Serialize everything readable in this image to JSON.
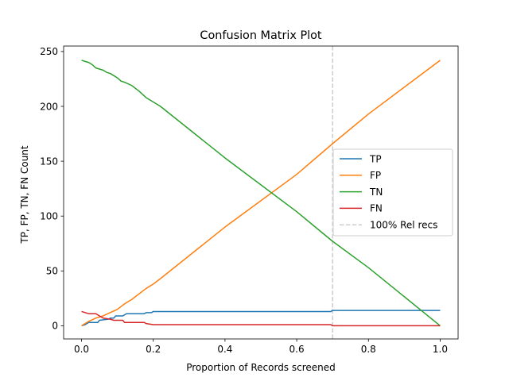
{
  "chart_data": {
    "type": "line",
    "title": "Confusion Matrix Plot",
    "xlabel": "Proportion of Records screened",
    "ylabel": "TP, FP, TN, FN Count",
    "xlim": [
      -0.05,
      1.05
    ],
    "ylim": [
      -12,
      255
    ],
    "xticks": [
      0.0,
      0.2,
      0.4,
      0.6,
      0.8,
      1.0
    ],
    "xtick_labels": [
      "0.0",
      "0.2",
      "0.4",
      "0.6",
      "0.8",
      "1.0"
    ],
    "yticks": [
      0,
      50,
      100,
      150,
      200,
      250
    ],
    "ytick_labels": [
      "0",
      "50",
      "100",
      "150",
      "200",
      "250"
    ],
    "grid": false,
    "legend_position": "center-right",
    "series": [
      {
        "name": "TP",
        "color": "#1f77b4",
        "points": [
          [
            0.0,
            0
          ],
          [
            0.01,
            1
          ],
          [
            0.02,
            3
          ],
          [
            0.045,
            3
          ],
          [
            0.05,
            5
          ],
          [
            0.075,
            6
          ],
          [
            0.08,
            7
          ],
          [
            0.09,
            7
          ],
          [
            0.095,
            9
          ],
          [
            0.115,
            9
          ],
          [
            0.12,
            10
          ],
          [
            0.125,
            11
          ],
          [
            0.175,
            11
          ],
          [
            0.18,
            12
          ],
          [
            0.195,
            12
          ],
          [
            0.2,
            13
          ],
          [
            0.695,
            13
          ],
          [
            0.7,
            14
          ],
          [
            1.0,
            14
          ]
        ]
      },
      {
        "name": "FP",
        "color": "#ff7f0e",
        "points": [
          [
            0.0,
            0
          ],
          [
            0.02,
            4
          ],
          [
            0.04,
            7
          ],
          [
            0.06,
            9
          ],
          [
            0.08,
            12
          ],
          [
            0.1,
            15
          ],
          [
            0.12,
            20
          ],
          [
            0.14,
            24
          ],
          [
            0.18,
            34
          ],
          [
            0.2,
            38
          ],
          [
            0.22,
            43
          ],
          [
            0.4,
            90
          ],
          [
            0.6,
            138
          ],
          [
            0.7,
            166
          ],
          [
            0.8,
            193
          ],
          [
            1.0,
            242
          ]
        ]
      },
      {
        "name": "TN",
        "color": "#2ca02c",
        "points": [
          [
            0.0,
            242
          ],
          [
            0.01,
            241
          ],
          [
            0.02,
            240
          ],
          [
            0.03,
            238
          ],
          [
            0.04,
            235
          ],
          [
            0.05,
            234
          ],
          [
            0.06,
            233
          ],
          [
            0.07,
            231
          ],
          [
            0.08,
            230
          ],
          [
            0.09,
            228
          ],
          [
            0.1,
            226
          ],
          [
            0.11,
            223
          ],
          [
            0.12,
            222
          ],
          [
            0.14,
            219
          ],
          [
            0.16,
            214
          ],
          [
            0.18,
            208
          ],
          [
            0.2,
            204
          ],
          [
            0.22,
            200
          ],
          [
            0.4,
            153
          ],
          [
            0.6,
            104
          ],
          [
            0.7,
            77
          ],
          [
            0.8,
            53
          ],
          [
            1.0,
            0
          ]
        ]
      },
      {
        "name": "FN",
        "color": "#d62728",
        "points": [
          [
            0.0,
            13
          ],
          [
            0.01,
            12
          ],
          [
            0.02,
            11
          ],
          [
            0.04,
            11
          ],
          [
            0.05,
            9
          ],
          [
            0.06,
            7
          ],
          [
            0.08,
            6
          ],
          [
            0.09,
            5
          ],
          [
            0.115,
            5
          ],
          [
            0.12,
            3
          ],
          [
            0.175,
            3
          ],
          [
            0.18,
            2
          ],
          [
            0.2,
            1
          ],
          [
            0.695,
            1
          ],
          [
            0.7,
            0
          ],
          [
            1.0,
            0
          ]
        ]
      }
    ],
    "vline": {
      "name": "100% Rel recs",
      "x": 0.7,
      "color": "#cccccc"
    }
  }
}
